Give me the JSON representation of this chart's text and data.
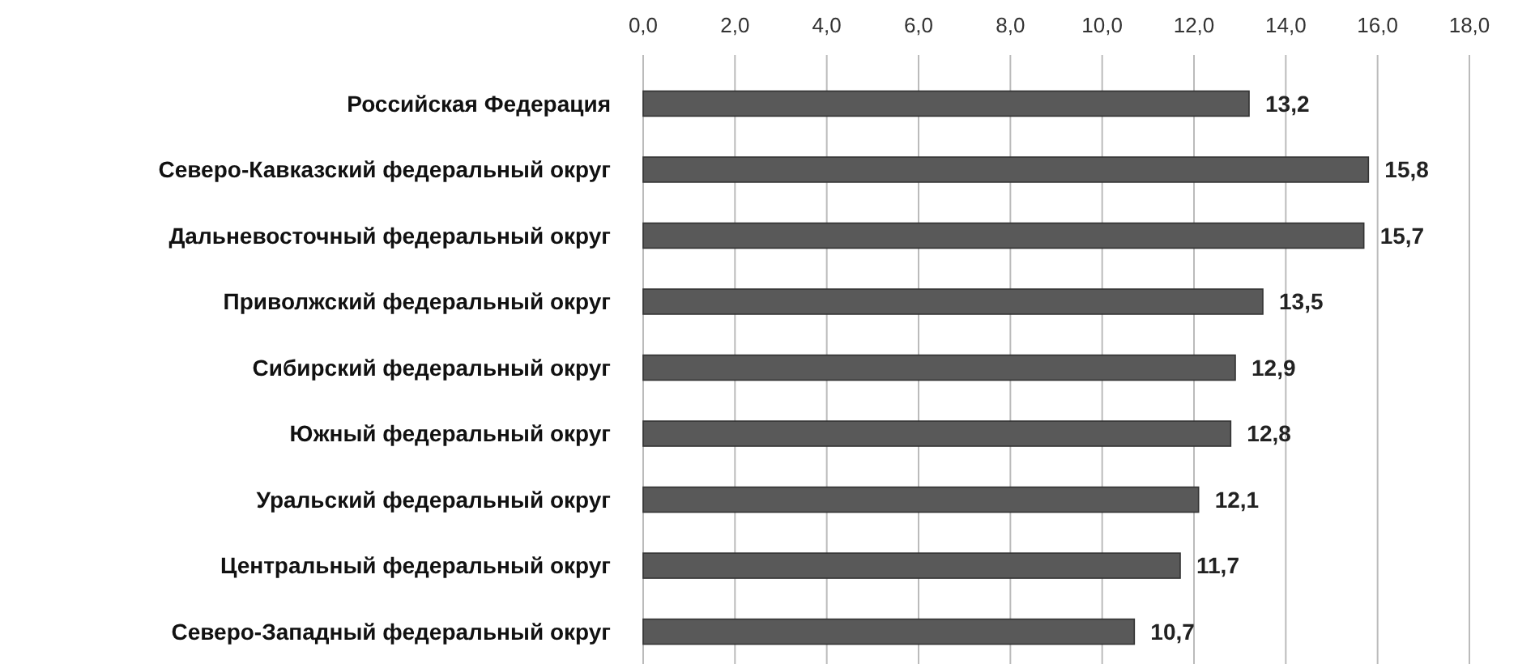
{
  "chart_data": {
    "type": "bar",
    "orientation": "horizontal",
    "categories": [
      "Российская Федерация",
      "Северо-Кавказский федеральный округ",
      "Дальневосточный федеральный округ",
      "Приволжский федеральный округ",
      "Сибирский федеральный округ",
      "Южный федеральный округ",
      "Уральский федеральный округ",
      "Центральный федеральный округ",
      "Северо-Западный федеральный округ"
    ],
    "values": [
      13.2,
      15.8,
      15.7,
      13.5,
      12.9,
      12.8,
      12.1,
      11.7,
      10.7
    ],
    "value_labels": [
      "13,2",
      "15,8",
      "15,7",
      "13,5",
      "12,9",
      "12,8",
      "12,1",
      "11,7",
      "10,7"
    ],
    "color": "#595959",
    "xlim": [
      0,
      18
    ],
    "xticks": [
      {
        "value": 0,
        "label": "0,0"
      },
      {
        "value": 2,
        "label": "2,0"
      },
      {
        "value": 4,
        "label": "4,0"
      },
      {
        "value": 6,
        "label": "6,0"
      },
      {
        "value": 8,
        "label": "8,0"
      },
      {
        "value": 10,
        "label": "10,0"
      },
      {
        "value": 12,
        "label": "12,0"
      },
      {
        "value": 14,
        "label": "14,0"
      },
      {
        "value": 16,
        "label": "16,0"
      },
      {
        "value": 18,
        "label": "18,0"
      }
    ],
    "grid": "x"
  }
}
